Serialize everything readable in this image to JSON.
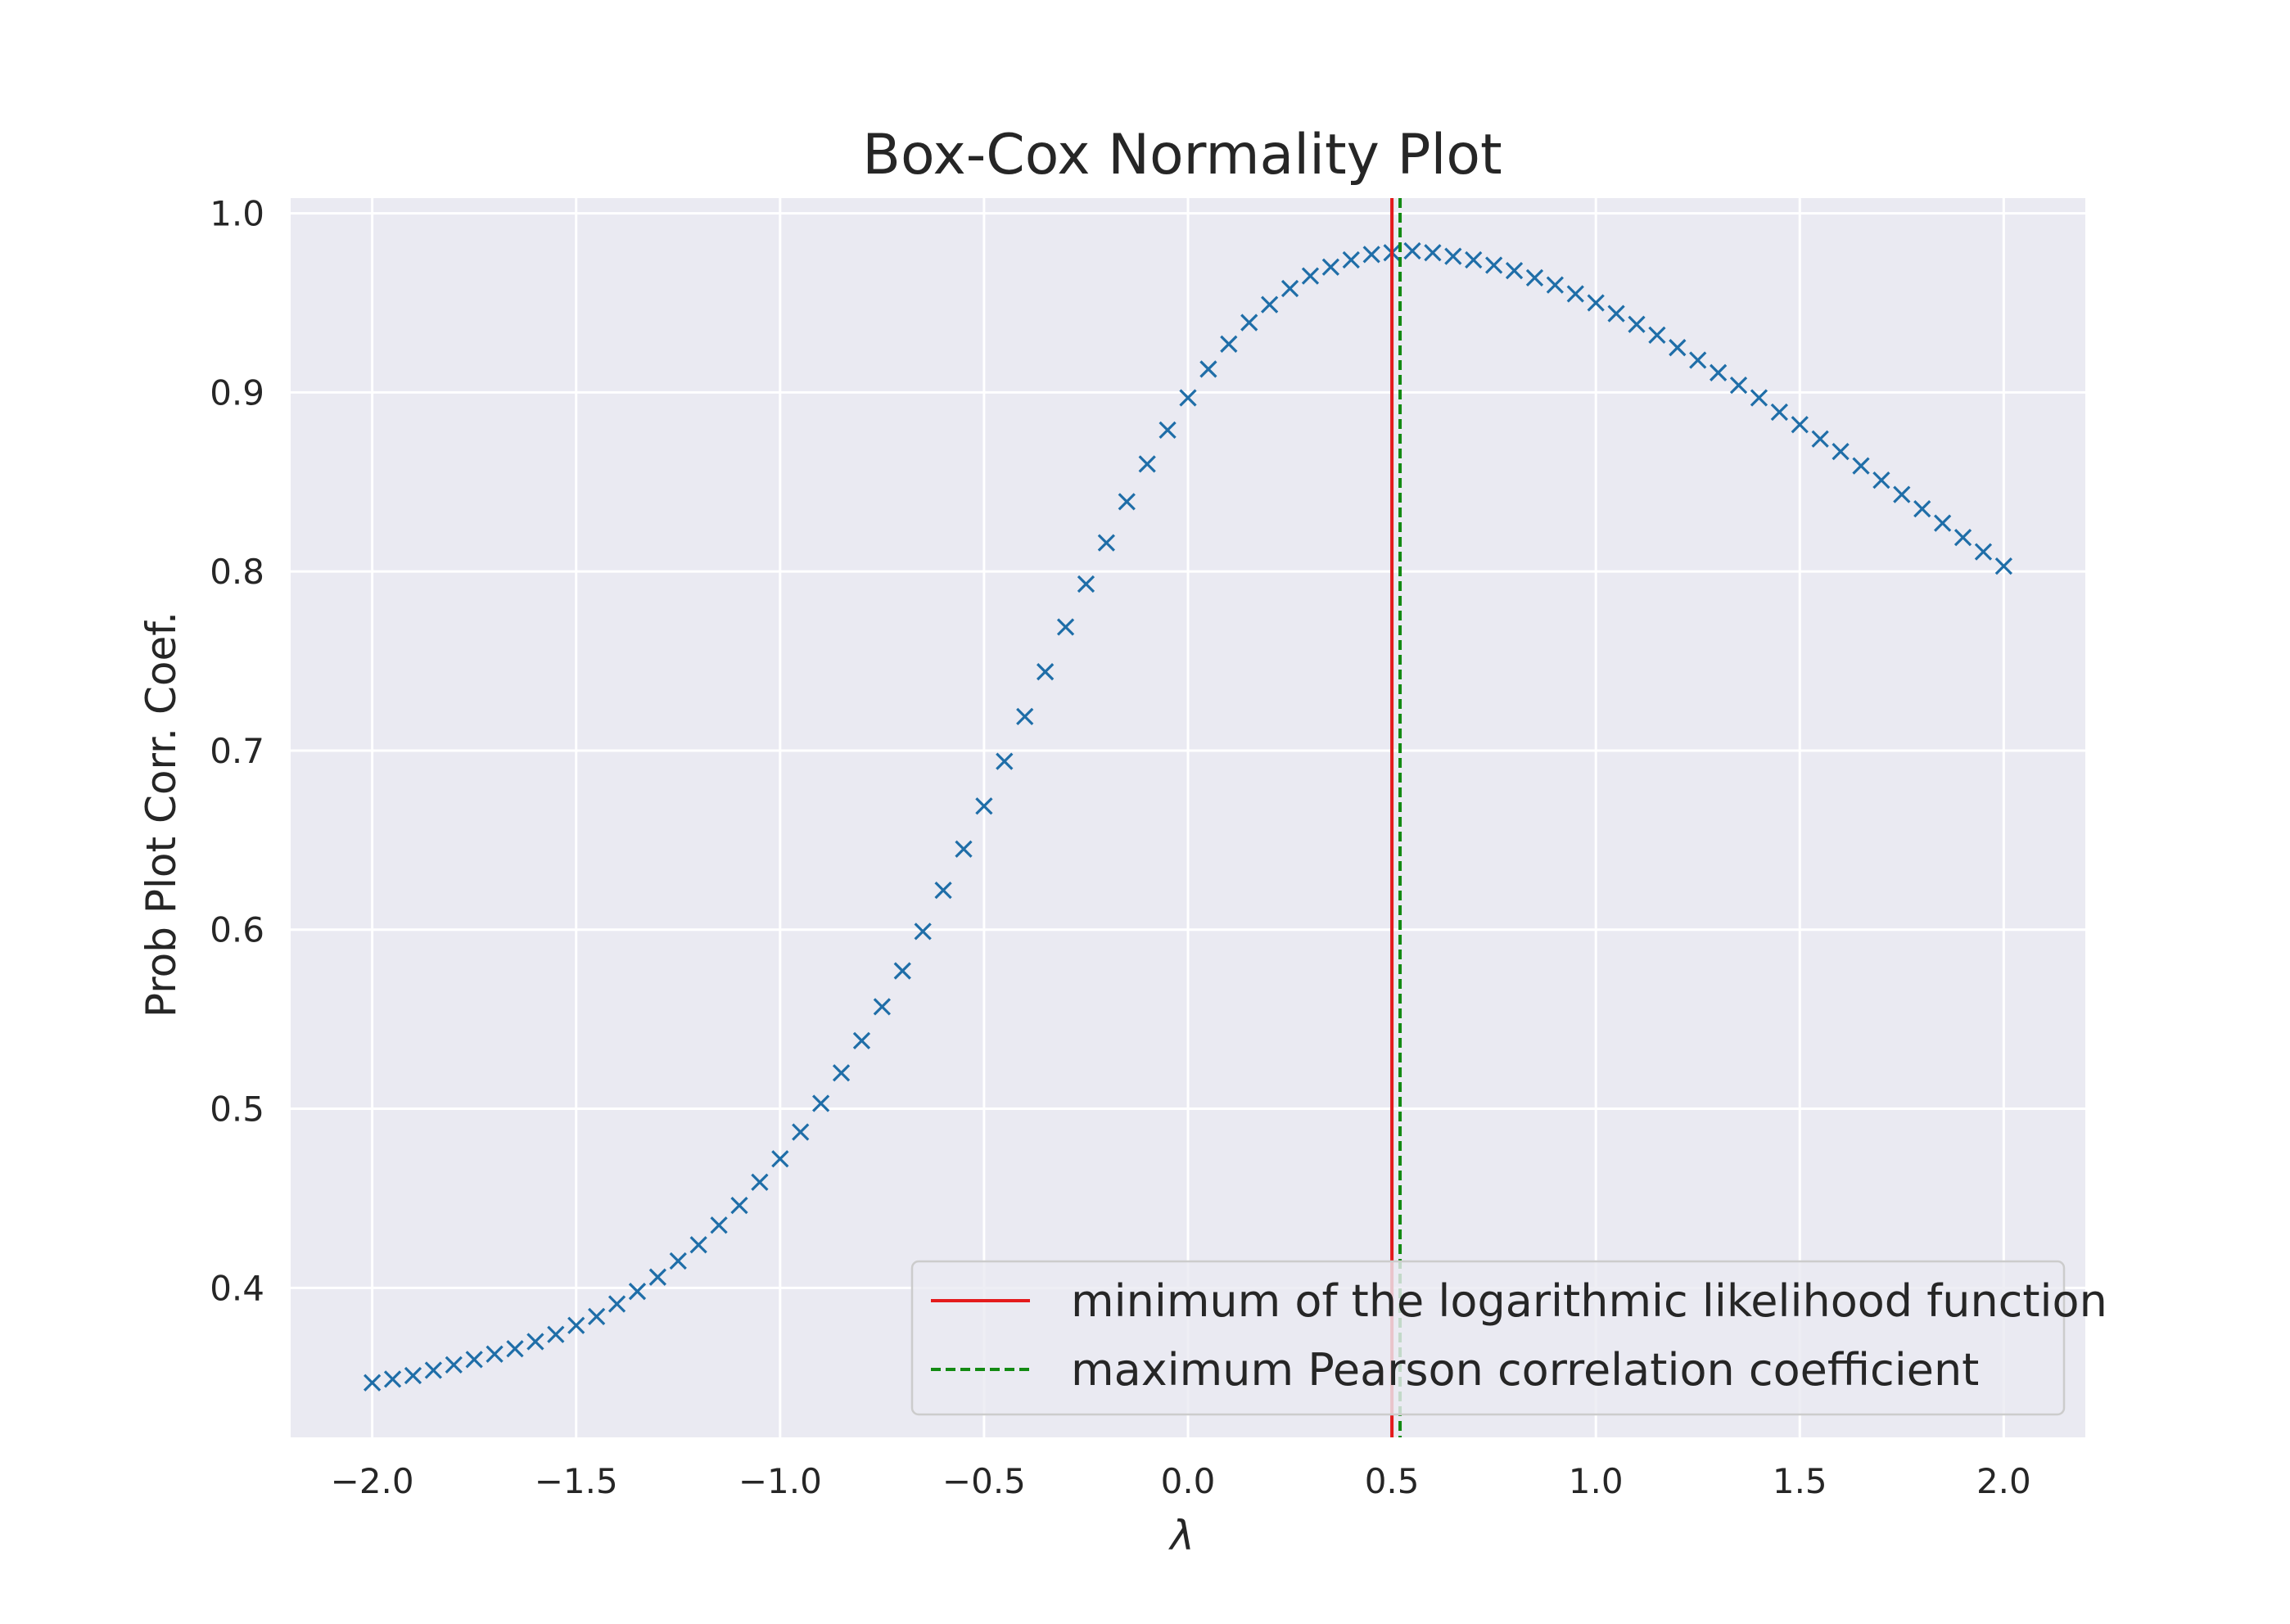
{
  "chart_data": {
    "type": "scatter",
    "title": "Box-Cox Normality Plot",
    "xlabel": "λ",
    "ylabel": "Prob Plot Corr. Coef.",
    "xlim": [
      -2.2,
      2.2
    ],
    "ylim": [
      0.3165,
      1.0085
    ],
    "x_ticks": [
      -2.0,
      -1.5,
      -1.0,
      -0.5,
      0.0,
      0.5,
      1.0,
      1.5,
      2.0
    ],
    "x_tick_labels": [
      "−2.0",
      "−1.5",
      "−1.0",
      "−0.5",
      "0.0",
      "0.5",
      "1.0",
      "1.5",
      "2.0"
    ],
    "y_ticks": [
      0.4,
      0.5,
      0.6,
      0.7,
      0.8,
      0.9,
      1.0
    ],
    "y_tick_labels": [
      "0.4",
      "0.5",
      "0.6",
      "0.7",
      "0.8",
      "0.9",
      "1.0"
    ],
    "grid": true,
    "legend_position": "lower right",
    "marker": "x",
    "colors": {
      "background": "#eaeaf2",
      "grid": "#ffffff",
      "points": "#1f6ea8",
      "red_line": "#e41a1c",
      "green_line": "#138a13"
    },
    "series": [
      {
        "x_start": -2.0,
        "x_step": 0.05,
        "y": [
          0.347,
          0.349,
          0.351,
          0.354,
          0.357,
          0.36,
          0.363,
          0.366,
          0.37,
          0.374,
          0.379,
          0.384,
          0.391,
          0.398,
          0.406,
          0.415,
          0.424,
          0.435,
          0.446,
          0.459,
          0.472,
          0.487,
          0.503,
          0.52,
          0.538,
          0.557,
          0.577,
          0.599,
          0.622,
          0.645,
          0.669,
          0.694,
          0.719,
          0.744,
          0.769,
          0.793,
          0.816,
          0.839,
          0.86,
          0.879,
          0.897,
          0.913,
          0.927,
          0.939,
          0.949,
          0.958,
          0.965,
          0.97,
          0.974,
          0.977,
          0.978,
          0.979,
          0.978,
          0.976,
          0.974,
          0.971,
          0.968,
          0.964,
          0.96,
          0.955,
          0.95,
          0.944,
          0.938,
          0.932,
          0.925,
          0.918,
          0.911,
          0.904,
          0.897,
          0.889,
          0.882,
          0.874,
          0.867,
          0.859,
          0.851,
          0.843,
          0.835,
          0.827,
          0.819,
          0.811,
          0.803
        ]
      }
    ],
    "vlines": [
      {
        "x": 0.5,
        "style": "solid",
        "color": "#e41a1c",
        "label": "minimum of the logarithmic likelihood function"
      },
      {
        "x": 0.52,
        "style": "dashed",
        "color": "#138a13",
        "label": "maximum Pearson correlation coefficient"
      }
    ]
  }
}
